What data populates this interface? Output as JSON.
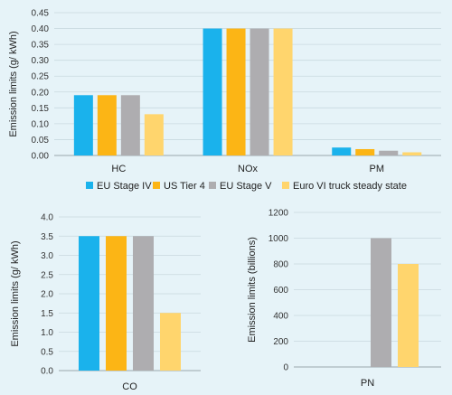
{
  "series_colors": {
    "EU Stage IV": "#1ab2ec",
    "US Tier 4": "#fcb515",
    "EU Stage V": "#aeadb0",
    "Euro VI truck steady state": "#ffd56d"
  },
  "legend": {
    "placement": "between-top-and-bottom-charts",
    "entries": [
      "EU Stage IV",
      "US Tier 4",
      "EU Stage V",
      "Euro VI truck steady state"
    ]
  },
  "chart_data": [
    {
      "type": "bar",
      "ylabel": "Emission limits (g/ kWh)",
      "ylim": [
        0,
        0.45
      ],
      "yticks": [
        "0.00",
        "0.05",
        "0.10",
        "0.15",
        "0.20",
        "0.25",
        "0.30",
        "0.35",
        "0.40",
        "0.45"
      ],
      "categories": [
        "HC",
        "NOx",
        "PM"
      ],
      "series": [
        {
          "name": "EU Stage IV",
          "values": [
            0.19,
            0.4,
            0.025
          ]
        },
        {
          "name": "US Tier 4",
          "values": [
            0.19,
            0.4,
            0.02
          ]
        },
        {
          "name": "EU Stage V",
          "values": [
            0.19,
            0.4,
            0.015
          ]
        },
        {
          "name": "Euro VI truck steady state",
          "values": [
            0.13,
            0.4,
            0.01
          ]
        }
      ]
    },
    {
      "type": "bar",
      "ylabel": "Emission limits (g/ kWh)",
      "ylim": [
        0,
        4.0
      ],
      "yticks": [
        "0.0",
        "0.5",
        "1.0",
        "1.5",
        "2.0",
        "2.5",
        "3.0",
        "3.5",
        "4.0"
      ],
      "categories": [
        "CO"
      ],
      "series": [
        {
          "name": "EU Stage IV",
          "values": [
            3.5
          ]
        },
        {
          "name": "US Tier 4",
          "values": [
            3.5
          ]
        },
        {
          "name": "EU Stage V",
          "values": [
            3.5
          ]
        },
        {
          "name": "Euro VI truck steady state",
          "values": [
            1.5
          ]
        }
      ]
    },
    {
      "type": "bar",
      "ylabel": "Emission limits (billions)",
      "ylim": [
        0,
        1200
      ],
      "yticks": [
        "0",
        "200",
        "400",
        "600",
        "800",
        "1000",
        "1200"
      ],
      "categories": [
        "PN"
      ],
      "series": [
        {
          "name": "EU Stage IV",
          "values": [
            null
          ]
        },
        {
          "name": "US Tier 4",
          "values": [
            null
          ]
        },
        {
          "name": "EU Stage V",
          "values": [
            1000
          ]
        },
        {
          "name": "Euro VI truck steady state",
          "values": [
            800
          ]
        }
      ]
    }
  ]
}
